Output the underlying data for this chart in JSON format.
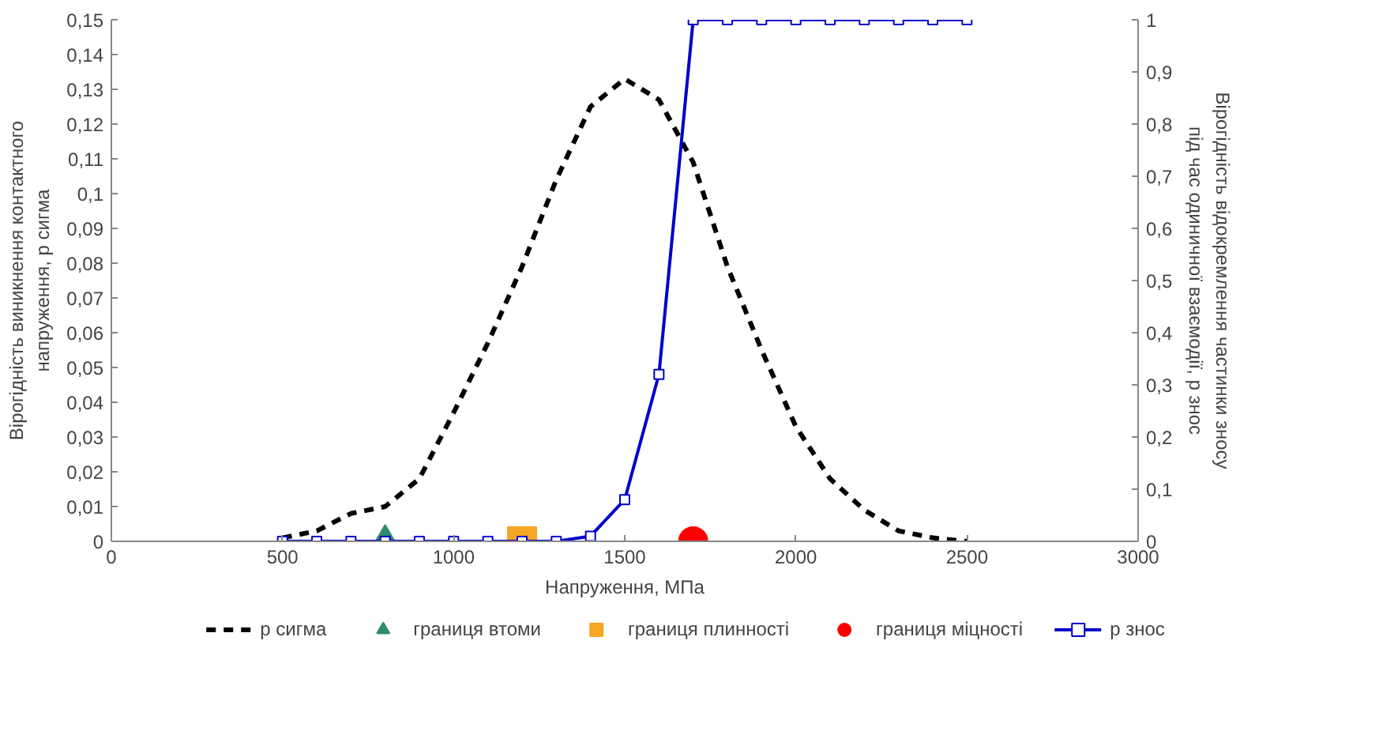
{
  "chart_data": {
    "type": "line",
    "xlabel": "Напруження, МПа",
    "ylabel": "Вірогідність виникнення контактного\nнапруження, p сигма",
    "y2label": "Вірогідність відокремлення частинки зносу\nпід час одиничної взаємодії, p знос",
    "xlim": [
      0,
      3000
    ],
    "xticks": [
      0,
      500,
      1000,
      1500,
      2000,
      2500,
      3000
    ],
    "ylim": [
      0,
      0.15
    ],
    "yticks": [
      0,
      {
        "value": 0.01,
        "label": "0,01"
      },
      {
        "value": 0.02,
        "label": "0,02"
      },
      {
        "value": 0.03,
        "label": "0,03"
      },
      {
        "value": 0.04,
        "label": "0,04"
      },
      {
        "value": 0.05,
        "label": "0,05"
      },
      {
        "value": 0.06,
        "label": "0,06"
      },
      {
        "value": 0.07,
        "label": "0,07"
      },
      {
        "value": 0.08,
        "label": "0,08"
      },
      {
        "value": 0.09,
        "label": "0,09"
      },
      {
        "value": 0.1,
        "label": "0,1"
      },
      {
        "value": 0.11,
        "label": "0,11"
      },
      {
        "value": 0.12,
        "label": "0,12"
      },
      {
        "value": 0.13,
        "label": "0,13"
      },
      {
        "value": 0.14,
        "label": "0,14"
      },
      {
        "value": 0.15,
        "label": "0,15"
      }
    ],
    "y2lim": [
      0,
      1
    ],
    "y2ticks": [
      0,
      {
        "value": 0.1,
        "label": "0,1"
      },
      {
        "value": 0.2,
        "label": "0,2"
      },
      {
        "value": 0.3,
        "label": "0,3"
      },
      {
        "value": 0.4,
        "label": "0,4"
      },
      {
        "value": 0.5,
        "label": "0,5"
      },
      {
        "value": 0.6,
        "label": "0,6"
      },
      {
        "value": 0.7,
        "label": "0,7"
      },
      {
        "value": 0.8,
        "label": "0,8"
      },
      {
        "value": 0.9,
        "label": "0,9"
      },
      1
    ],
    "grid": false,
    "legend": "bottom",
    "series": [
      {
        "name": "p сигма",
        "color": "#000000",
        "line_style": "dashed",
        "marker": "none",
        "x": [
          500,
          600,
          700,
          800,
          900,
          1000,
          1100,
          1200,
          1300,
          1400,
          1500,
          1600,
          1700,
          1800,
          1900,
          2000,
          2100,
          2200,
          2300,
          2400,
          2500
        ],
        "values": [
          0.001,
          0.003,
          0.008,
          0.01,
          0.018,
          0.037,
          0.057,
          0.079,
          0.104,
          0.125,
          0.133,
          0.127,
          0.109,
          0.079,
          0.055,
          0.033,
          0.018,
          0.009,
          0.003,
          0.001,
          0
        ]
      },
      {
        "name": "границя втоми",
        "type": "scatter",
        "color": "#2e8b6e",
        "marker": "triangle",
        "x": [
          800
        ],
        "values": [
          0
        ]
      },
      {
        "name": "границя плинності",
        "type": "scatter",
        "color": "#f5a623",
        "marker": "square",
        "x": [
          1200
        ],
        "values": [
          0
        ]
      },
      {
        "name": "границя міцності",
        "type": "scatter",
        "color": "#ff0000",
        "marker": "circle",
        "x": [
          1700
        ],
        "values": [
          0
        ]
      },
      {
        "name": "p знос",
        "axis": "y2",
        "color": "#0000cc",
        "line_style": "solid",
        "marker": "square",
        "x": [
          500,
          600,
          700,
          800,
          900,
          1000,
          1100,
          1200,
          1300,
          1400,
          1500,
          1600,
          1700,
          1800,
          1900,
          2000,
          2100,
          2200,
          2300,
          2400,
          2500
        ],
        "values": [
          0,
          0,
          0,
          0,
          0,
          0,
          0,
          0,
          0,
          0.01,
          0.08,
          0.32,
          1,
          1,
          1,
          1,
          1,
          1,
          1,
          1,
          1
        ]
      }
    ]
  }
}
